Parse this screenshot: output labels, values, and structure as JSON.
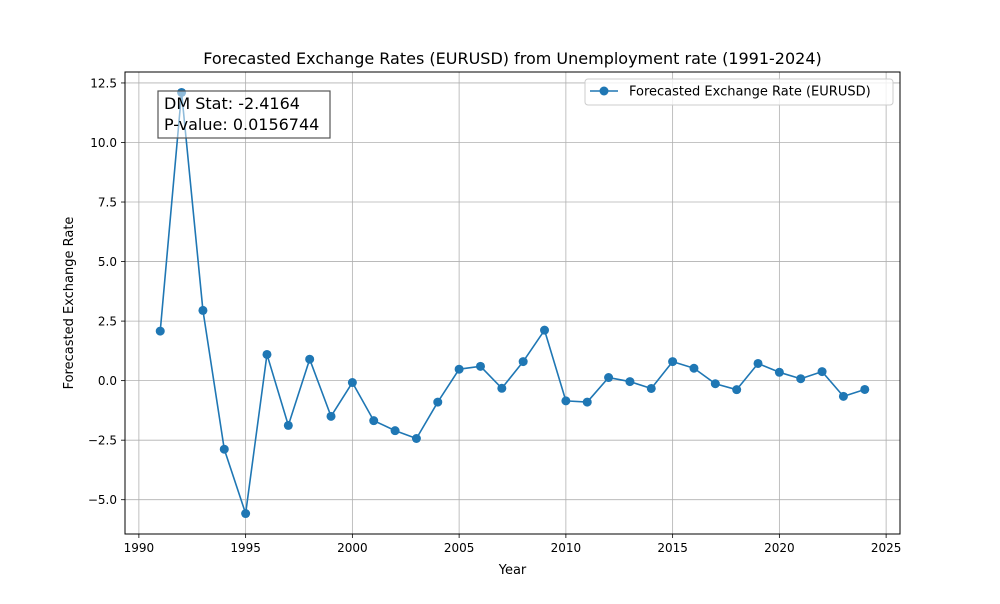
{
  "chart_data": {
    "type": "line",
    "title": "Forecasted Exchange Rates (EURUSD) from Unemployment rate (1991-2024)",
    "xlabel": "Year",
    "ylabel": "Forecasted Exchange Rate",
    "xlim": [
      1989.35,
      2025.65
    ],
    "ylim": [
      -6.44,
      12.96
    ],
    "xticks": [
      1990,
      1995,
      2000,
      2005,
      2010,
      2015,
      2020,
      2025
    ],
    "xtick_labels": [
      "1990",
      "1995",
      "2000",
      "2005",
      "2010",
      "2015",
      "2020",
      "2025"
    ],
    "yticks": [
      -5.0,
      -2.5,
      0.0,
      2.5,
      5.0,
      7.5,
      10.0,
      12.5
    ],
    "ytick_labels": [
      "−5.0",
      "−2.5",
      "0.0",
      "2.5",
      "5.0",
      "7.5",
      "10.0",
      "12.5"
    ],
    "grid": true,
    "legend_position": "upper right",
    "color": "#1f77b4",
    "series": [
      {
        "name": "Forecasted Exchange Rate (EURUSD)",
        "x": [
          1991,
          1992,
          1993,
          1994,
          1995,
          1996,
          1997,
          1998,
          1999,
          2000,
          2001,
          2002,
          2003,
          2004,
          2005,
          2006,
          2007,
          2008,
          2009,
          2010,
          2011,
          2012,
          2013,
          2014,
          2015,
          2016,
          2017,
          2018,
          2019,
          2020,
          2021,
          2022,
          2023,
          2024
        ],
        "y": [
          2.08,
          12.1,
          2.95,
          -2.88,
          -5.58,
          1.1,
          -1.88,
          0.9,
          -1.5,
          -0.08,
          -1.68,
          -2.1,
          -2.43,
          -0.9,
          0.48,
          0.6,
          -0.32,
          0.8,
          2.12,
          -0.85,
          -0.9,
          0.13,
          -0.04,
          -0.33,
          0.8,
          0.52,
          -0.13,
          -0.38,
          0.72,
          0.35,
          0.08,
          0.38,
          -0.66,
          -0.37
        ]
      }
    ],
    "annotation": {
      "lines": [
        "DM Stat: -2.4164",
        "P-value: 0.0156744"
      ],
      "position": "upper left"
    }
  }
}
